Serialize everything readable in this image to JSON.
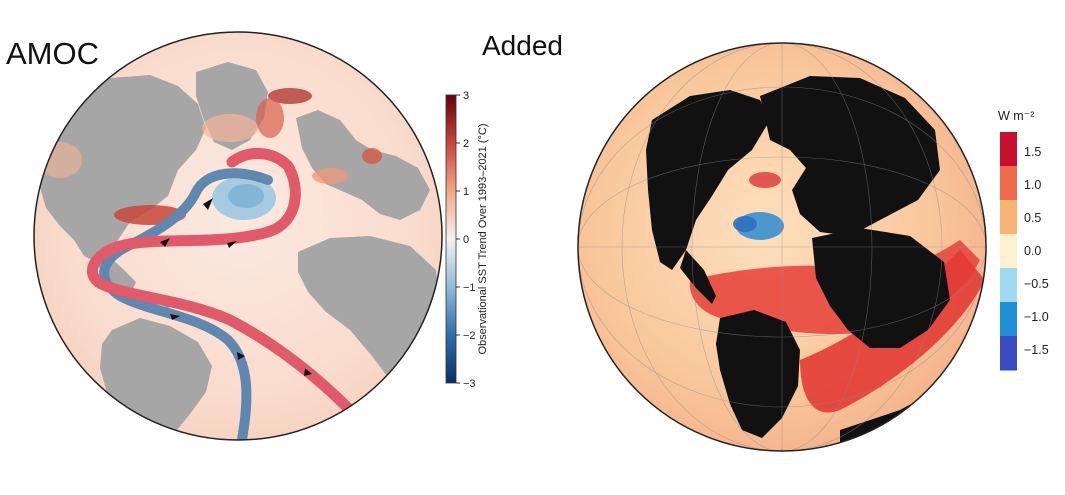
{
  "panels": {
    "left": {
      "title": "AMOC",
      "colorbar": {
        "label": "Observational SST Trend Over 1993–2021 (°C)",
        "ticks": [
          "3",
          "2",
          "1",
          "0",
          "−1",
          "−2",
          "−3"
        ],
        "range": [
          -3,
          3
        ],
        "colors": [
          "#08306b",
          "#2f6fad",
          "#8dbbd9",
          "#f5f1ee",
          "#f0a585",
          "#c8473c",
          "#67000d"
        ]
      },
      "currents": {
        "warm_color": "#e05a6b",
        "cold_color": "#5f87b0"
      },
      "land_color": "#a6a6a6"
    },
    "right": {
      "title": "Added",
      "colorbar": {
        "unit": "W m⁻²",
        "ticks": [
          "1.5",
          "1.0",
          "0.5",
          "0.0",
          "−0.5",
          "−1.0",
          "−1.5"
        ],
        "range": [
          -1.8,
          1.8
        ],
        "colors": [
          "#3b4cc0",
          "#1f8fd6",
          "#9fd9ef",
          "#fdf2cf",
          "#f7b574",
          "#ec6a4a",
          "#c8102e"
        ]
      },
      "land_color": "#111111"
    }
  }
}
